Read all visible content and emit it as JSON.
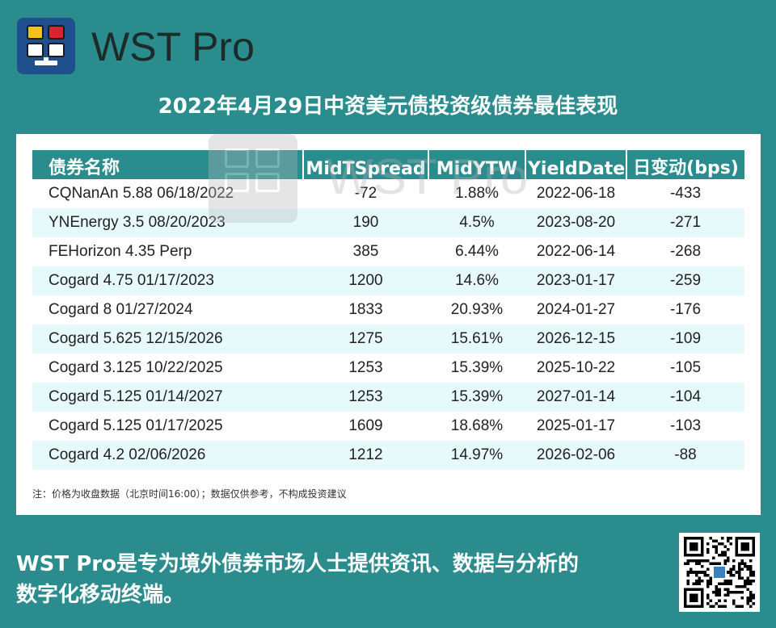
{
  "brand": {
    "name": "WST Pro"
  },
  "title": "2022年4月29日中资美元债投资级债券最佳表现",
  "table": {
    "headers": [
      "债券名称",
      "MidTSpread",
      "MidYTW",
      "YieldDate",
      "日变动(bps)"
    ],
    "rows": [
      [
        "CQNanAn 5.88 06/18/2022",
        "-72",
        "1.88%",
        "2022-06-18",
        "-433"
      ],
      [
        "YNEnergy 3.5 08/20/2023",
        "190",
        "4.5%",
        "2023-08-20",
        "-271"
      ],
      [
        "FEHorizon 4.35 Perp",
        "385",
        "6.44%",
        "2022-06-14",
        "-268"
      ],
      [
        "Cogard 4.75 01/17/2023",
        "1200",
        "14.6%",
        "2023-01-17",
        "-259"
      ],
      [
        "Cogard 8 01/27/2024",
        "1833",
        "20.93%",
        "2024-01-27",
        "-176"
      ],
      [
        "Cogard 5.625 12/15/2026",
        "1275",
        "15.61%",
        "2026-12-15",
        "-109"
      ],
      [
        "Cogard 3.125 10/22/2025",
        "1253",
        "15.39%",
        "2025-10-22",
        "-105"
      ],
      [
        "Cogard 5.125 01/14/2027",
        "1253",
        "15.39%",
        "2027-01-14",
        "-104"
      ],
      [
        "Cogard 5.125 01/17/2025",
        "1609",
        "18.68%",
        "2025-01-17",
        "-103"
      ],
      [
        "Cogard 4.2 02/06/2026",
        "1212",
        "14.97%",
        "2026-02-06",
        "-88"
      ]
    ]
  },
  "note": "注：价格为收盘数据（北京时间16:00）；数据仅供参考，不构成投资建议",
  "watermark": "WST Pro",
  "footer": {
    "line1": "WST Pro是专为境外债券市场人士提供资讯、数据与分析的",
    "line2": "数字化移动终端。"
  },
  "colors": {
    "background": "#2a8c8c",
    "header": "#2a8c8c",
    "row_alt": "#e6fafc",
    "logo_bg": "#1f4f8c"
  },
  "icons": {
    "logo": "wst-logo-icon",
    "qr": "qr-code-icon"
  }
}
